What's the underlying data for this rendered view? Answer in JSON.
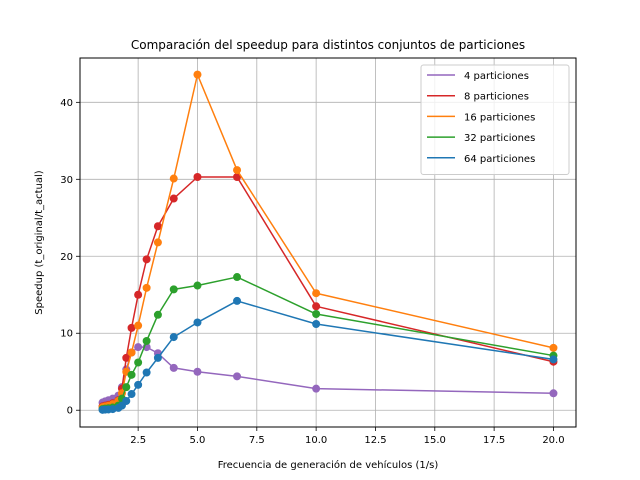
{
  "chart_data": {
    "type": "line",
    "title": "Comparación del speedup para distintos conjuntos de particiones",
    "xlabel": "Frecuencia de generación de vehículos (1/s)",
    "ylabel": "Speedup (t_original/t_actual)",
    "xlim": [
      0.05,
      20.95
    ],
    "ylim": [
      -2.18,
      45.76
    ],
    "xticks": [
      2.5,
      5.0,
      7.5,
      10.0,
      12.5,
      15.0,
      17.5,
      20.0
    ],
    "xtick_labels": [
      "2.5",
      "5.0",
      "7.5",
      "10.0",
      "12.5",
      "15.0",
      "17.5",
      "20.0"
    ],
    "yticks": [
      0,
      10,
      20,
      30,
      40
    ],
    "ytick_labels": [
      "0",
      "10",
      "20",
      "30",
      "40"
    ],
    "grid": true,
    "legend_position": "top-right",
    "x": [
      1.0,
      1.111,
      1.25,
      1.429,
      1.667,
      1.818,
      2.0,
      2.222,
      2.5,
      2.857,
      3.333,
      4.0,
      5.0,
      6.667,
      10.0,
      20.0
    ],
    "series": [
      {
        "name": "4 particiones",
        "color": "#9467bd",
        "values": [
          1.0,
          1.15,
          1.3,
          1.5,
          1.9,
          3.0,
          5.3,
          7.5,
          8.2,
          8.2,
          7.4,
          5.5,
          5.0,
          4.4,
          2.8,
          2.2
        ]
      },
      {
        "name": "8 particiones",
        "color": "#d62728",
        "values": [
          0.5,
          0.6,
          0.7,
          0.9,
          1.3,
          2.8,
          6.8,
          10.7,
          15.0,
          19.6,
          23.9,
          27.5,
          30.3,
          30.3,
          13.5,
          6.3
        ]
      },
      {
        "name": "16 particiones",
        "color": "#ff7f0e",
        "values": [
          0.4,
          0.5,
          0.6,
          0.8,
          1.2,
          2.2,
          5.0,
          7.5,
          11.0,
          15.9,
          21.8,
          30.1,
          43.6,
          31.2,
          15.2,
          8.1
        ]
      },
      {
        "name": "32 particiones",
        "color": "#2ca02c",
        "values": [
          0.15,
          0.2,
          0.25,
          0.35,
          0.6,
          1.5,
          3.0,
          4.6,
          6.2,
          9.0,
          12.4,
          15.7,
          16.2,
          17.3,
          12.5,
          7.1
        ]
      },
      {
        "name": "64 particiones",
        "color": "#1f77b4",
        "values": [
          0.05,
          0.08,
          0.1,
          0.15,
          0.3,
          0.6,
          1.2,
          2.1,
          3.3,
          4.9,
          6.8,
          9.5,
          11.4,
          14.2,
          11.2,
          6.6
        ]
      }
    ]
  }
}
